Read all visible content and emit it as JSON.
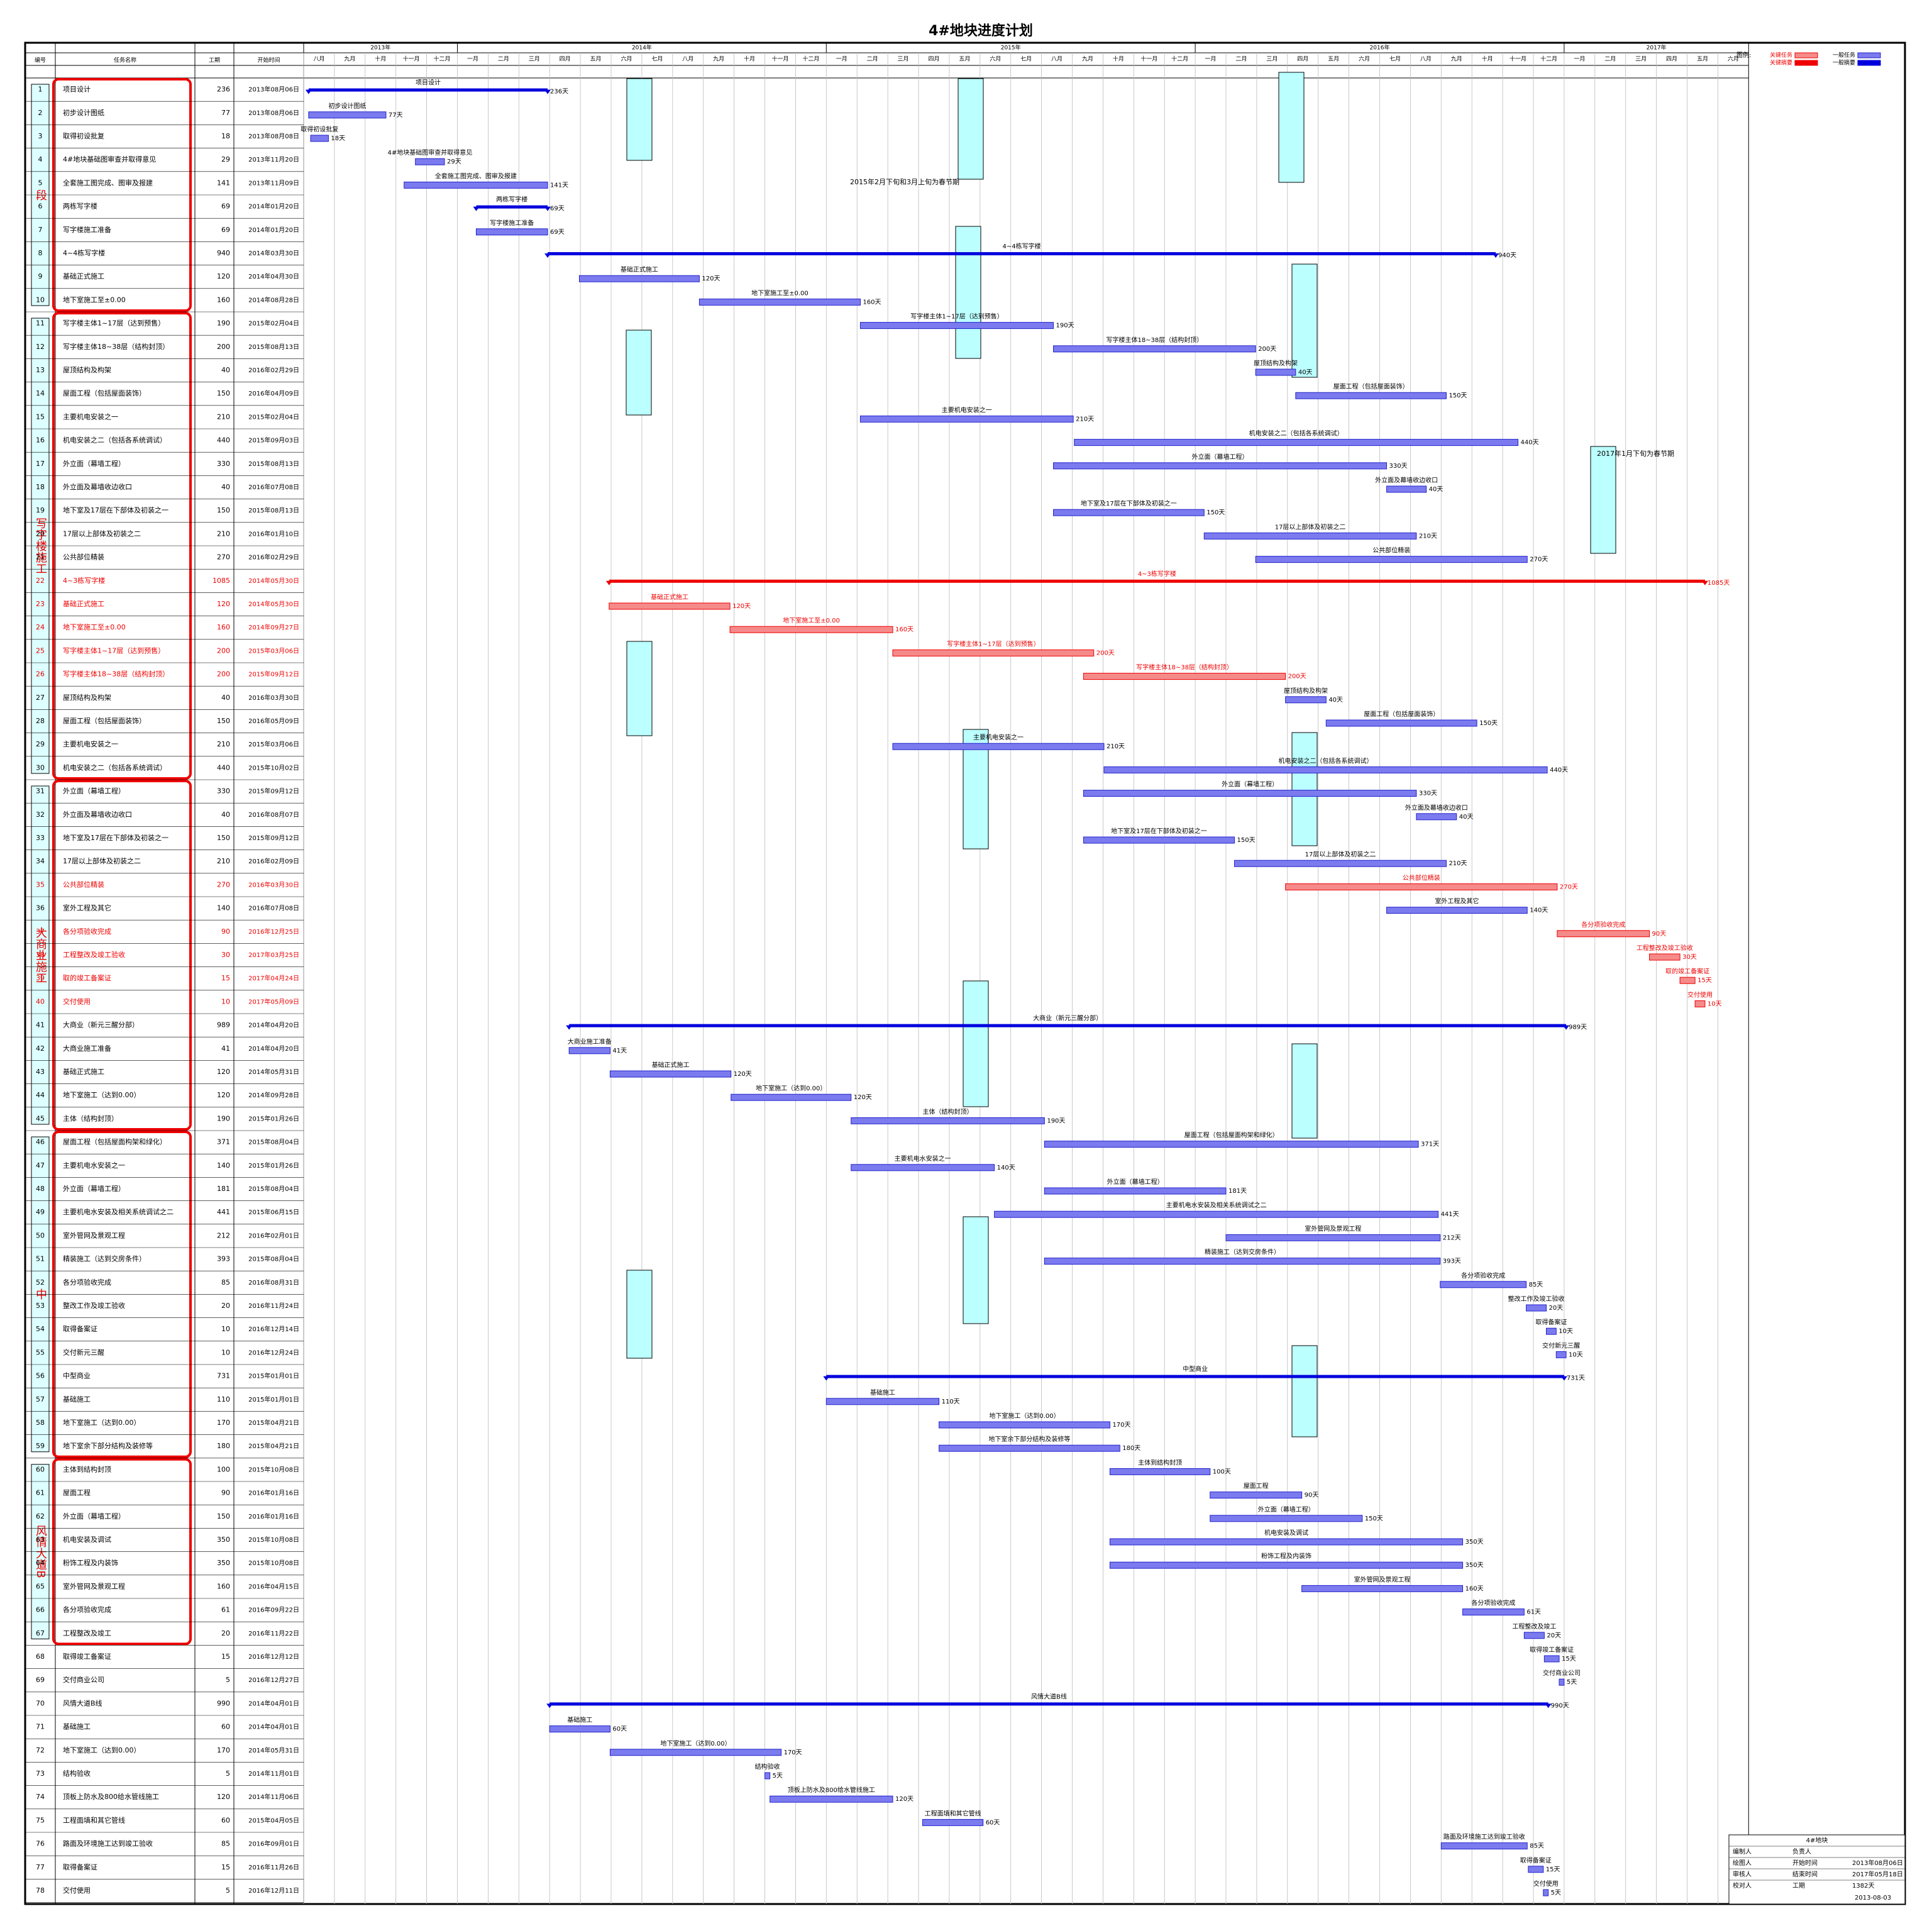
{
  "title": "4#地块进度计划",
  "columns": [
    "编号",
    "任务名称",
    "工期",
    "开始时间"
  ],
  "legend": {
    "label": "图例:",
    "items": [
      {
        "name": "关键任务",
        "kind": "critical"
      },
      {
        "name": "一般任务",
        "kind": "task"
      },
      {
        "name": "关键摘要",
        "kind": "critical-summary"
      },
      {
        "name": "一般摘要",
        "kind": "summary"
      }
    ]
  },
  "years": [
    "2013年",
    "2014年",
    "2015年",
    "2016年",
    "2017年"
  ],
  "months": [
    "八月",
    "九月",
    "十月",
    "十一月",
    "十二月",
    "一月",
    "二月",
    "三月",
    "四月",
    "五月",
    "六月",
    "七月",
    "八月",
    "九月",
    "十月",
    "十一月",
    "十二月",
    "一月",
    "二月",
    "三月",
    "四月",
    "五月",
    "六月",
    "七月",
    "八月",
    "九月",
    "十月",
    "十一月",
    "十二月",
    "一月",
    "二月",
    "三月",
    "四月",
    "五月",
    "六月",
    "七月",
    "八月",
    "九月",
    "十月",
    "十一月",
    "十二月",
    "一月",
    "二月",
    "三月",
    "四月",
    "五月",
    "六月"
  ],
  "groups": [
    "段",
    "写字楼施工",
    "大商业施工",
    "中",
    "风情大道B"
  ],
  "annotations": [
    "2015年2月下旬和3月上旬为春节期",
    "2017年1月下旬为春节期"
  ],
  "tasks": [
    {
      "id": 1,
      "name": "项目设计",
      "duration": 236,
      "duration_label": "236天",
      "start": "2013年08月06日",
      "kind": "summary"
    },
    {
      "id": 2,
      "name": "初步设计图纸",
      "duration": 77,
      "duration_label": "77天",
      "start": "2013年08月06日",
      "kind": "task"
    },
    {
      "id": 3,
      "name": "取得初设批复",
      "duration": 18,
      "duration_label": "18天",
      "start": "2013年08月08日",
      "kind": "task"
    },
    {
      "id": 4,
      "name": "4#地块基础图审查并取得意见",
      "duration": 29,
      "duration_label": "29天",
      "start": "2013年11月20日",
      "kind": "task"
    },
    {
      "id": 5,
      "name": "全套施工图完成、图审及报建",
      "duration": 141,
      "duration_label": "141天",
      "start": "2013年11月09日",
      "kind": "task"
    },
    {
      "id": 6,
      "name": "两栋写字楼",
      "duration": 69,
      "duration_label": "69天",
      "start": "2014年01月20日",
      "kind": "summary"
    },
    {
      "id": 7,
      "name": "写字楼施工准备",
      "duration": 69,
      "duration_label": "69天",
      "start": "2014年01月20日",
      "kind": "task"
    },
    {
      "id": 8,
      "name": "4~4栋写字楼",
      "duration": 940,
      "duration_label": "940天",
      "start": "2014年03月30日",
      "kind": "summary"
    },
    {
      "id": 9,
      "name": "基础正式施工",
      "duration": 120,
      "duration_label": "120天",
      "start": "2014年04月30日",
      "kind": "task"
    },
    {
      "id": 10,
      "name": "地下室施工至±0.00",
      "duration": 160,
      "duration_label": "160天",
      "start": "2014年08月28日",
      "kind": "task"
    },
    {
      "id": 11,
      "name": "写字楼主体1~17层（达到预售）",
      "duration": 190,
      "duration_label": "190天",
      "start": "2015年02月04日",
      "kind": "task"
    },
    {
      "id": 12,
      "name": "写字楼主体18~38层（结构封顶）",
      "duration": 200,
      "duration_label": "200天",
      "start": "2015年08月13日",
      "kind": "task"
    },
    {
      "id": 13,
      "name": "屋顶结构及构架",
      "duration": 40,
      "duration_label": "40天",
      "start": "2016年02月29日",
      "kind": "task"
    },
    {
      "id": 14,
      "name": "屋面工程（包括屋面装饰）",
      "duration": 150,
      "duration_label": "150天",
      "start": "2016年04月09日",
      "kind": "task"
    },
    {
      "id": 15,
      "name": "主要机电安装之一",
      "duration": 210,
      "duration_label": "210天",
      "start": "2015年02月04日",
      "kind": "task"
    },
    {
      "id": 16,
      "name": "机电安装之二（包括各系统调试）",
      "duration": 440,
      "duration_label": "440天",
      "start": "2015年09月03日",
      "kind": "task"
    },
    {
      "id": 17,
      "name": "外立面（幕墙工程）",
      "duration": 330,
      "duration_label": "330天",
      "start": "2015年08月13日",
      "kind": "task"
    },
    {
      "id": 18,
      "name": "外立面及幕墙收边收口",
      "duration": 40,
      "duration_label": "40天",
      "start": "2016年07月08日",
      "kind": "task"
    },
    {
      "id": 19,
      "name": "地下室及17层在下部体及初装之一",
      "duration": 150,
      "duration_label": "150天",
      "start": "2015年08月13日",
      "kind": "task"
    },
    {
      "id": 20,
      "name": "17层以上部体及初装之二",
      "duration": 210,
      "duration_label": "210天",
      "start": "2016年01月10日",
      "kind": "task"
    },
    {
      "id": 21,
      "name": "公共部位精装",
      "duration": 270,
      "duration_label": "270天",
      "start": "2016年02月29日",
      "kind": "task"
    },
    {
      "id": 22,
      "name": "4~3栋写字楼",
      "duration": 1085,
      "duration_label": "1085天",
      "start": "2014年05月30日",
      "kind": "critical-summary"
    },
    {
      "id": 23,
      "name": "基础正式施工",
      "duration": 120,
      "duration_label": "120天",
      "start": "2014年05月30日",
      "kind": "critical"
    },
    {
      "id": 24,
      "name": "地下室施工至±0.00",
      "duration": 160,
      "duration_label": "160天",
      "start": "2014年09月27日",
      "kind": "critical"
    },
    {
      "id": 25,
      "name": "写字楼主体1~17层（达到预售）",
      "duration": 200,
      "duration_label": "200天",
      "start": "2015年03月06日",
      "kind": "critical"
    },
    {
      "id": 26,
      "name": "写字楼主体18~38层（结构封顶）",
      "duration": 200,
      "duration_label": "200天",
      "start": "2015年09月12日",
      "kind": "critical"
    },
    {
      "id": 27,
      "name": "屋顶结构及构架",
      "duration": 40,
      "duration_label": "40天",
      "start": "2016年03月30日",
      "kind": "task"
    },
    {
      "id": 28,
      "name": "屋面工程（包括屋面装饰）",
      "duration": 150,
      "duration_label": "150天",
      "start": "2016年05月09日",
      "kind": "task"
    },
    {
      "id": 29,
      "name": "主要机电安装之一",
      "duration": 210,
      "duration_label": "210天",
      "start": "2015年03月06日",
      "kind": "task"
    },
    {
      "id": 30,
      "name": "机电安装之二（包括各系统调试）",
      "duration": 440,
      "duration_label": "440天",
      "start": "2015年10月02日",
      "kind": "task"
    },
    {
      "id": 31,
      "name": "外立面（幕墙工程）",
      "duration": 330,
      "duration_label": "330天",
      "start": "2015年09月12日",
      "kind": "task"
    },
    {
      "id": 32,
      "name": "外立面及幕墙收边收口",
      "duration": 40,
      "duration_label": "40天",
      "start": "2016年08月07日",
      "kind": "task"
    },
    {
      "id": 33,
      "name": "地下室及17层在下部体及初装之一",
      "duration": 150,
      "duration_label": "150天",
      "start": "2015年09月12日",
      "kind": "task"
    },
    {
      "id": 34,
      "name": "17层以上部体及初装之二",
      "duration": 210,
      "duration_label": "210天",
      "start": "2016年02月09日",
      "kind": "task"
    },
    {
      "id": 35,
      "name": "公共部位精装",
      "duration": 270,
      "duration_label": "270天",
      "start": "2016年03月30日",
      "kind": "critical"
    },
    {
      "id": 36,
      "name": "室外工程及其它",
      "duration": 140,
      "duration_label": "140天",
      "start": "2016年07月08日",
      "kind": "task"
    },
    {
      "id": 37,
      "name": "各分项验收完成",
      "duration": 90,
      "duration_label": "90天",
      "start": "2016年12月25日",
      "kind": "critical"
    },
    {
      "id": 38,
      "name": "工程整改及竣工验收",
      "duration": 30,
      "duration_label": "30天",
      "start": "2017年03月25日",
      "kind": "critical"
    },
    {
      "id": 39,
      "name": "取的竣工备案证",
      "duration": 15,
      "duration_label": "15天",
      "start": "2017年04月24日",
      "kind": "critical"
    },
    {
      "id": 40,
      "name": "交付使用",
      "duration": 10,
      "duration_label": "10天",
      "start": "2017年05月09日",
      "kind": "critical"
    },
    {
      "id": 41,
      "name": "大商业（新元三醒分部）",
      "duration": 989,
      "duration_label": "989天",
      "start": "2014年04月20日",
      "kind": "summary"
    },
    {
      "id": 42,
      "name": "大商业施工准备",
      "duration": 41,
      "duration_label": "41天",
      "start": "2014年04月20日",
      "kind": "task"
    },
    {
      "id": 43,
      "name": "基础正式施工",
      "duration": 120,
      "duration_label": "120天",
      "start": "2014年05月31日",
      "kind": "task"
    },
    {
      "id": 44,
      "name": "地下室施工（达到0.00）",
      "duration": 120,
      "duration_label": "120天",
      "start": "2014年09月28日",
      "kind": "task"
    },
    {
      "id": 45,
      "name": "主体（结构封顶）",
      "duration": 190,
      "duration_label": "190天",
      "start": "2015年01月26日",
      "kind": "task"
    },
    {
      "id": 46,
      "name": "屋面工程（包括屋面构架和绿化）",
      "duration": 371,
      "duration_label": "371天",
      "start": "2015年08月04日",
      "kind": "task"
    },
    {
      "id": 47,
      "name": "主要机电水安装之一",
      "duration": 140,
      "duration_label": "140天",
      "start": "2015年01月26日",
      "kind": "task"
    },
    {
      "id": 48,
      "name": "外立面（幕墙工程）",
      "duration": 181,
      "duration_label": "181天",
      "start": "2015年08月04日",
      "kind": "task"
    },
    {
      "id": 49,
      "name": "主要机电水安装及相关系统调试之二",
      "duration": 441,
      "duration_label": "441天",
      "start": "2015年06月15日",
      "kind": "task"
    },
    {
      "id": 50,
      "name": "室外管网及景观工程",
      "duration": 212,
      "duration_label": "212天",
      "start": "2016年02月01日",
      "kind": "task"
    },
    {
      "id": 51,
      "name": "精装施工（达到交房条件）",
      "duration": 393,
      "duration_label": "393天",
      "start": "2015年08月04日",
      "kind": "task"
    },
    {
      "id": 52,
      "name": "各分项验收完成",
      "duration": 85,
      "duration_label": "85天",
      "start": "2016年08月31日",
      "kind": "task"
    },
    {
      "id": 53,
      "name": "整改工作及竣工验收",
      "duration": 20,
      "duration_label": "20天",
      "start": "2016年11月24日",
      "kind": "task"
    },
    {
      "id": 54,
      "name": "取得备案证",
      "duration": 10,
      "duration_label": "10天",
      "start": "2016年12月14日",
      "kind": "task"
    },
    {
      "id": 55,
      "name": "交付新元三醒",
      "duration": 10,
      "duration_label": "10天",
      "start": "2016年12月24日",
      "kind": "task"
    },
    {
      "id": 56,
      "name": "中型商业",
      "duration": 731,
      "duration_label": "731天",
      "start": "2015年01月01日",
      "kind": "summary"
    },
    {
      "id": 57,
      "name": "基础施工",
      "duration": 110,
      "duration_label": "110天",
      "start": "2015年01月01日",
      "kind": "task"
    },
    {
      "id": 58,
      "name": "地下室施工（达到0.00）",
      "duration": 170,
      "duration_label": "170天",
      "start": "2015年04月21日",
      "kind": "task"
    },
    {
      "id": 59,
      "name": "地下室余下部分结构及装修等",
      "duration": 180,
      "duration_label": "180天",
      "start": "2015年04月21日",
      "kind": "task"
    },
    {
      "id": 60,
      "name": "主体到结构封顶",
      "duration": 100,
      "duration_label": "100天",
      "start": "2015年10月08日",
      "kind": "task"
    },
    {
      "id": 61,
      "name": "屋面工程",
      "duration": 90,
      "duration_label": "90天",
      "start": "2016年01月16日",
      "kind": "task"
    },
    {
      "id": 62,
      "name": "外立面（幕墙工程）",
      "duration": 150,
      "duration_label": "150天",
      "start": "2016年01月16日",
      "kind": "task"
    },
    {
      "id": 63,
      "name": "机电安装及调试",
      "duration": 350,
      "duration_label": "350天",
      "start": "2015年10月08日",
      "kind": "task"
    },
    {
      "id": 64,
      "name": "粉饰工程及内装饰",
      "duration": 350,
      "duration_label": "350天",
      "start": "2015年10月08日",
      "kind": "task"
    },
    {
      "id": 65,
      "name": "室外管网及景观工程",
      "duration": 160,
      "duration_label": "160天",
      "start": "2016年04月15日",
      "kind": "task"
    },
    {
      "id": 66,
      "name": "各分项验收完成",
      "duration": 61,
      "duration_label": "61天",
      "start": "2016年09月22日",
      "kind": "task"
    },
    {
      "id": 67,
      "name": "工程整改及竣工",
      "duration": 20,
      "duration_label": "20天",
      "start": "2016年11月22日",
      "kind": "task"
    },
    {
      "id": 68,
      "name": "取得竣工备案证",
      "duration": 15,
      "duration_label": "15天",
      "start": "2016年12月12日",
      "kind": "task"
    },
    {
      "id": 69,
      "name": "交付商业公司",
      "duration": 5,
      "duration_label": "5天",
      "start": "2016年12月27日",
      "kind": "task"
    },
    {
      "id": 70,
      "name": "风情大道B线",
      "duration": 990,
      "duration_label": "990天",
      "start": "2014年04月01日",
      "kind": "summary"
    },
    {
      "id": 71,
      "name": "基础施工",
      "duration": 60,
      "duration_label": "60天",
      "start": "2014年04月01日",
      "kind": "task"
    },
    {
      "id": 72,
      "name": "地下室施工（达到0.00）",
      "duration": 170,
      "duration_label": "170天",
      "start": "2014年05月31日",
      "kind": "task"
    },
    {
      "id": 73,
      "name": "结构验收",
      "duration": 5,
      "duration_label": "5天",
      "start": "2014年11月01日",
      "kind": "task"
    },
    {
      "id": 74,
      "name": "顶板上防水及800给水管线施工",
      "duration": 120,
      "duration_label": "120天",
      "start": "2014年11月06日",
      "kind": "task"
    },
    {
      "id": 75,
      "name": "工程面填和其它管线",
      "duration": 60,
      "duration_label": "60天",
      "start": "2015年04月05日",
      "kind": "task"
    },
    {
      "id": 76,
      "name": "路面及环境施工达到竣工验收",
      "duration": 85,
      "duration_label": "85天",
      "start": "2016年09月01日",
      "kind": "task"
    },
    {
      "id": 77,
      "name": "取得备案证",
      "duration": 15,
      "duration_label": "15天",
      "start": "2016年11月26日",
      "kind": "task"
    },
    {
      "id": 78,
      "name": "交付使用",
      "duration": 5,
      "duration_label": "5天",
      "start": "2016年12月11日",
      "kind": "task"
    }
  ],
  "footer": {
    "project": "4#地块",
    "rows": [
      [
        "编制人",
        "负责人",
        ""
      ],
      [
        "绘图人",
        "开始时间",
        "2013年08月06日"
      ],
      [
        "审核人",
        "结束时间",
        "2017年05月18日"
      ],
      [
        "校对人",
        "工期",
        "1382天"
      ]
    ],
    "date": "2013-08-03"
  }
}
